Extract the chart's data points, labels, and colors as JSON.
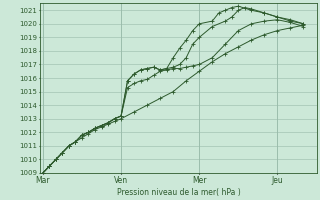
{
  "bg_color": "#cce8d8",
  "grid_color": "#99bbaa",
  "line_color": "#2d5a2d",
  "marker_color": "#2d5a2d",
  "xlabel": "Pression niveau de la mer( hPa )",
  "ylim": [
    1009,
    1021.5
  ],
  "yticks": [
    1009,
    1010,
    1011,
    1012,
    1013,
    1014,
    1015,
    1016,
    1017,
    1018,
    1019,
    1020,
    1021
  ],
  "day_labels": [
    "Mar",
    "Ven",
    "Mer",
    "Jeu"
  ],
  "day_positions": [
    0.0,
    3.0,
    6.0,
    9.0
  ],
  "xlim": [
    -0.1,
    10.5
  ],
  "lines": [
    {
      "x": [
        0.0,
        0.25,
        0.5,
        0.75,
        1.0,
        1.25,
        1.5,
        1.75,
        2.0,
        2.25,
        2.5,
        2.75,
        3.0,
        3.5,
        4.0,
        4.5,
        5.0,
        5.5,
        6.0,
        6.5,
        7.0,
        7.5,
        8.0,
        8.5,
        9.0,
        9.5,
        10.0
      ],
      "y": [
        1009.0,
        1009.5,
        1010.0,
        1010.5,
        1011.0,
        1011.3,
        1011.6,
        1011.9,
        1012.2,
        1012.4,
        1012.6,
        1012.8,
        1013.0,
        1013.5,
        1014.0,
        1014.5,
        1015.0,
        1015.8,
        1016.5,
        1017.2,
        1017.8,
        1018.3,
        1018.8,
        1019.2,
        1019.5,
        1019.7,
        1019.9
      ]
    },
    {
      "x": [
        0.0,
        0.25,
        0.5,
        0.75,
        1.0,
        1.25,
        1.5,
        1.75,
        2.0,
        2.25,
        2.5,
        2.75,
        3.0,
        3.25,
        3.5,
        3.75,
        4.0,
        4.25,
        4.5,
        4.75,
        5.0,
        5.25,
        5.5,
        5.75,
        6.0,
        6.5,
        7.0,
        7.5,
        8.0,
        8.5,
        9.0,
        9.5,
        10.0
      ],
      "y": [
        1009.0,
        1009.5,
        1010.0,
        1010.5,
        1011.0,
        1011.3,
        1011.8,
        1012.0,
        1012.3,
        1012.5,
        1012.7,
        1013.0,
        1013.2,
        1015.3,
        1015.6,
        1015.8,
        1015.9,
        1016.2,
        1016.5,
        1016.6,
        1016.7,
        1016.7,
        1016.8,
        1016.9,
        1017.0,
        1017.5,
        1018.5,
        1019.5,
        1020.0,
        1020.2,
        1020.3,
        1020.1,
        1019.8
      ]
    },
    {
      "x": [
        0.0,
        0.25,
        0.5,
        0.75,
        1.0,
        1.25,
        1.5,
        1.75,
        2.0,
        2.25,
        2.5,
        2.75,
        3.0,
        3.25,
        3.5,
        3.75,
        4.0,
        4.25,
        4.5,
        4.75,
        5.0,
        5.25,
        5.5,
        5.75,
        6.0,
        6.5,
        7.0,
        7.25,
        7.5,
        7.75,
        8.0,
        8.5,
        9.0,
        9.5,
        10.0
      ],
      "y": [
        1009.0,
        1009.5,
        1010.0,
        1010.5,
        1011.0,
        1011.3,
        1011.8,
        1012.0,
        1012.3,
        1012.5,
        1012.7,
        1013.0,
        1013.2,
        1015.8,
        1016.3,
        1016.6,
        1016.7,
        1016.8,
        1016.6,
        1016.7,
        1016.8,
        1017.0,
        1017.5,
        1018.5,
        1019.0,
        1019.8,
        1020.2,
        1020.5,
        1021.0,
        1021.2,
        1021.1,
        1020.8,
        1020.5,
        1020.3,
        1020.0
      ]
    },
    {
      "x": [
        0.0,
        0.25,
        0.5,
        0.75,
        1.0,
        1.25,
        1.5,
        1.75,
        2.0,
        2.25,
        2.5,
        2.75,
        3.0,
        3.25,
        3.5,
        3.75,
        4.0,
        4.25,
        4.5,
        4.75,
        5.0,
        5.25,
        5.5,
        5.75,
        6.0,
        6.5,
        6.75,
        7.0,
        7.25,
        7.5,
        8.0,
        8.5,
        9.0,
        9.5,
        10.0
      ],
      "y": [
        1009.0,
        1009.5,
        1010.0,
        1010.5,
        1011.0,
        1011.3,
        1011.8,
        1012.0,
        1012.3,
        1012.5,
        1012.7,
        1013.0,
        1013.2,
        1015.8,
        1016.3,
        1016.6,
        1016.7,
        1016.8,
        1016.6,
        1016.7,
        1017.5,
        1018.2,
        1018.8,
        1019.5,
        1020.0,
        1020.2,
        1020.8,
        1021.0,
        1021.2,
        1021.3,
        1021.0,
        1020.8,
        1020.5,
        1020.2,
        1020.0
      ]
    }
  ]
}
